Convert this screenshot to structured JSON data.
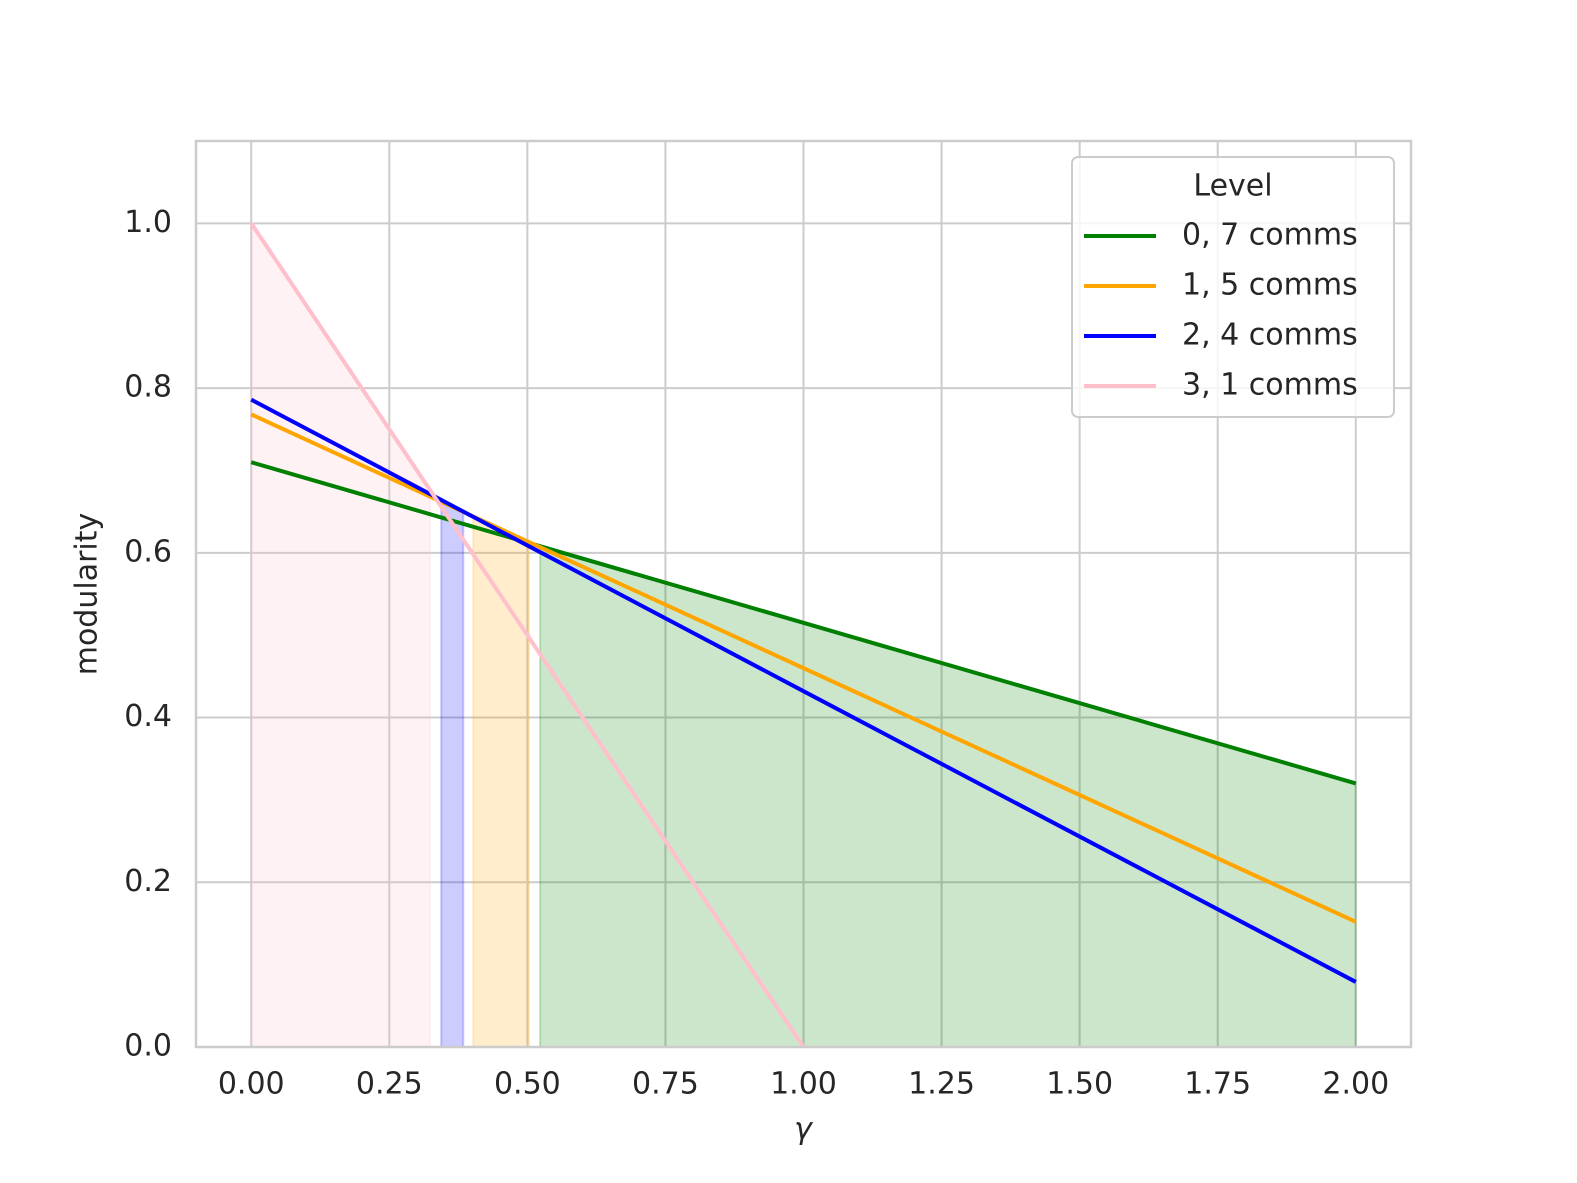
{
  "chart_data": {
    "type": "line",
    "xlabel": "γ",
    "ylabel": "modularity",
    "x": [
      0,
      1,
      2
    ],
    "series": [
      {
        "name": "0, 7 comms",
        "color": "#008000",
        "values": [
          0.71,
          0.515,
          0.32
        ],
        "span": [
          0.523,
          2.0
        ]
      },
      {
        "name": "1, 5 comms",
        "color": "#ffa500",
        "values": [
          0.768,
          0.46,
          0.152
        ],
        "span": [
          0.402,
          0.503
        ]
      },
      {
        "name": "2, 4 comms",
        "color": "#0000ff",
        "values": [
          0.786,
          0.432,
          0.079
        ],
        "span": [
          0.344,
          0.384
        ]
      },
      {
        "name": "3, 1 comms",
        "color": "#ffc0cb",
        "values": [
          1.0,
          0.0,
          null
        ],
        "span": [
          0,
          0.324
        ]
      }
    ],
    "xlim": [
      -0.1,
      2.1
    ],
    "ylim": [
      0,
      1.1
    ],
    "xticks": [
      {
        "value": 0,
        "label": "0.00"
      },
      0.25,
      {
        "value": 0.5,
        "label": "0.50"
      },
      0.75,
      {
        "value": 1,
        "label": "1.00"
      },
      1.25,
      {
        "value": 1.5,
        "label": "1.50"
      },
      1.75,
      {
        "value": 2,
        "label": "2.00"
      }
    ],
    "yticks": [
      {
        "value": 0,
        "label": "0.0"
      },
      0.2,
      0.4,
      0.6,
      0.8,
      {
        "value": 1,
        "label": "1.0"
      }
    ],
    "grid": true,
    "legend_title": "Level",
    "legend_loc": "upper right"
  }
}
